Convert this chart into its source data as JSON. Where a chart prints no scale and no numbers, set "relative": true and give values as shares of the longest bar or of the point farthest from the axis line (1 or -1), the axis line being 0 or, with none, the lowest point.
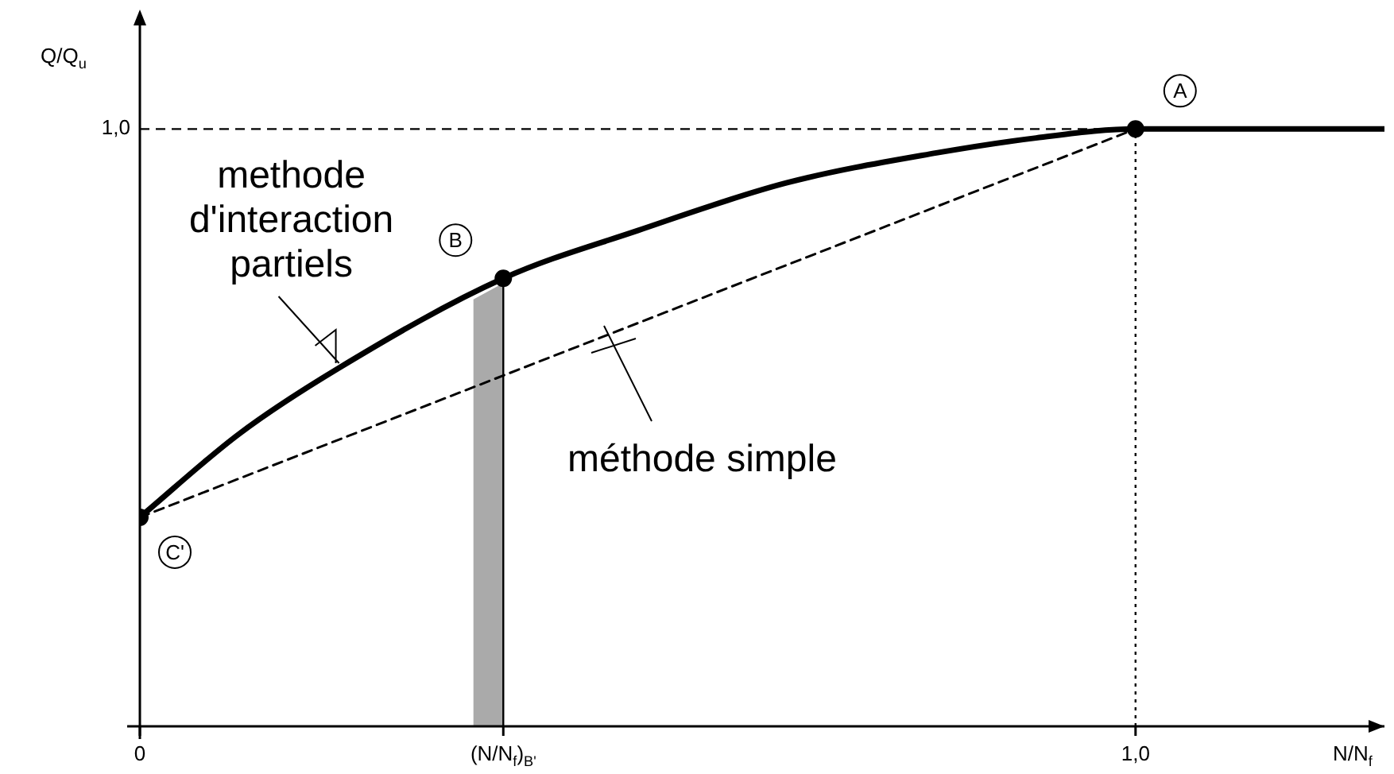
{
  "chart_data": {
    "type": "line",
    "xlabel": "N/N$_{f}$",
    "ylabel": "Q/Q$_{u}$",
    "relative": true,
    "xlim": [
      0,
      1.25
    ],
    "xticks": [
      0,
      {
        "value": 0.365,
        "label": "(N/N$_{f}$)$_{B'}$"
      },
      {
        "value": 1,
        "label": "1,0"
      }
    ],
    "grid": false,
    "legend": false,
    "series": [
      {
        "type": "line",
        "color": "#000000",
        "x": [
          0,
          0.1,
          0.2,
          0.365,
          0.5,
          0.65,
          0.8,
          0.9,
          1,
          1.25
        ],
        "values": [
          0.35,
          0.49,
          0.6,
          0.75,
          0.83,
          0.91,
          0.96,
          0.985,
          1,
          1
        ],
        "marker": "none",
        "line_style": "solid"
      },
      {
        "type": "line",
        "color": "#000000",
        "x": [
          0,
          1
        ],
        "values": [
          0.35,
          1
        ],
        "marker": "none",
        "line_style": "dashed"
      },
      {
        "type": "scatter",
        "color": "#000000",
        "x": [
          0,
          0.365,
          1
        ],
        "values": [
          0.35,
          0.75,
          1
        ],
        "marker": "circle"
      }
    ],
    "ref_lines": [
      {
        "axis": "y",
        "value": 1,
        "label": "1,0",
        "line_style": "dashed",
        "color": "#000000"
      },
      {
        "axis": "x",
        "value": 1,
        "label": null,
        "line_style": "dotted",
        "color": "#000000"
      },
      {
        "axis": "x",
        "value": 0.365,
        "label": null,
        "line_style": "solid",
        "color": "#000000"
      }
    ],
    "bands": [
      {
        "axis": "x",
        "from": 0.335,
        "to": 0.365,
        "label": null,
        "color": "#aaaaaa"
      }
    ],
    "annotations": [
      {
        "text": "A",
        "x": 1,
        "y": 1
      },
      {
        "text": "B",
        "x": 0.365,
        "y": 0.75
      },
      {
        "text": "C'",
        "x": 0,
        "y": 0.35
      },
      {
        "text": "methode\nd'interaction\npartiels",
        "x": 0.2,
        "y": 0.6
      },
      "méthode simple"
    ]
  }
}
